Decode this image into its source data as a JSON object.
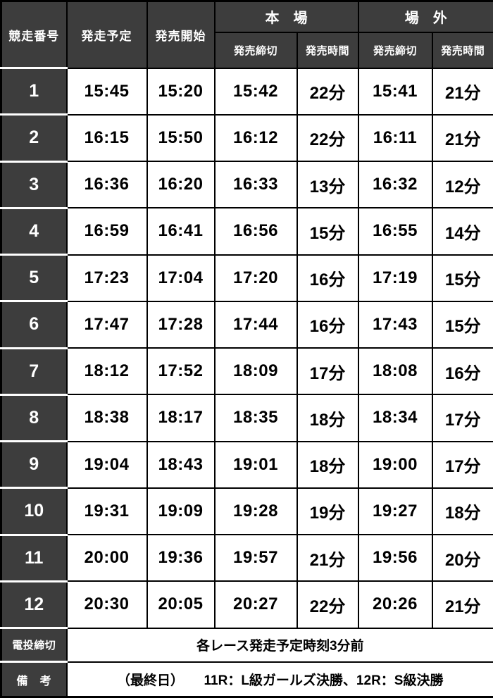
{
  "header": {
    "race_number": "競走番号",
    "scheduled_start": "発走予定",
    "sale_open": "発売開始",
    "main_venue": "本　場",
    "off_track": "場　外",
    "sale_close": "発売締切",
    "sale_duration": "発売時間"
  },
  "rows": [
    {
      "race": "1",
      "start": "15:45",
      "open": "15:20",
      "main_close": "15:42",
      "main_dur": "22分",
      "off_close": "15:41",
      "off_dur": "21分"
    },
    {
      "race": "2",
      "start": "16:15",
      "open": "15:50",
      "main_close": "16:12",
      "main_dur": "22分",
      "off_close": "16:11",
      "off_dur": "21分"
    },
    {
      "race": "3",
      "start": "16:36",
      "open": "16:20",
      "main_close": "16:33",
      "main_dur": "13分",
      "off_close": "16:32",
      "off_dur": "12分"
    },
    {
      "race": "4",
      "start": "16:59",
      "open": "16:41",
      "main_close": "16:56",
      "main_dur": "15分",
      "off_close": "16:55",
      "off_dur": "14分"
    },
    {
      "race": "5",
      "start": "17:23",
      "open": "17:04",
      "main_close": "17:20",
      "main_dur": "16分",
      "off_close": "17:19",
      "off_dur": "15分"
    },
    {
      "race": "6",
      "start": "17:47",
      "open": "17:28",
      "main_close": "17:44",
      "main_dur": "16分",
      "off_close": "17:43",
      "off_dur": "15分"
    },
    {
      "race": "7",
      "start": "18:12",
      "open": "17:52",
      "main_close": "18:09",
      "main_dur": "17分",
      "off_close": "18:08",
      "off_dur": "16分"
    },
    {
      "race": "8",
      "start": "18:38",
      "open": "18:17",
      "main_close": "18:35",
      "main_dur": "18分",
      "off_close": "18:34",
      "off_dur": "17分"
    },
    {
      "race": "9",
      "start": "19:04",
      "open": "18:43",
      "main_close": "19:01",
      "main_dur": "18分",
      "off_close": "19:00",
      "off_dur": "17分"
    },
    {
      "race": "10",
      "start": "19:31",
      "open": "19:09",
      "main_close": "19:28",
      "main_dur": "19分",
      "off_close": "19:27",
      "off_dur": "18分"
    },
    {
      "race": "11",
      "start": "20:00",
      "open": "19:36",
      "main_close": "19:57",
      "main_dur": "21分",
      "off_close": "19:56",
      "off_dur": "20分"
    },
    {
      "race": "12",
      "start": "20:30",
      "open": "20:05",
      "main_close": "20:27",
      "main_dur": "22分",
      "off_close": "20:26",
      "off_dur": "21分"
    }
  ],
  "footer": {
    "evote_label": "電投締切",
    "evote_value": "各レース発走予定時刻3分前",
    "remarks_label": "備　考",
    "remarks_value": "（最終日）　　11R：L級ガールズ決勝、12R：S級決勝"
  },
  "colors": {
    "header_bg": "#3d3d3d",
    "header_text": "#ffffff",
    "cell_bg": "#ffffff",
    "cell_text": "#000000",
    "grid_border": "#000000",
    "dark_cell_separator": "#ffffff"
  }
}
